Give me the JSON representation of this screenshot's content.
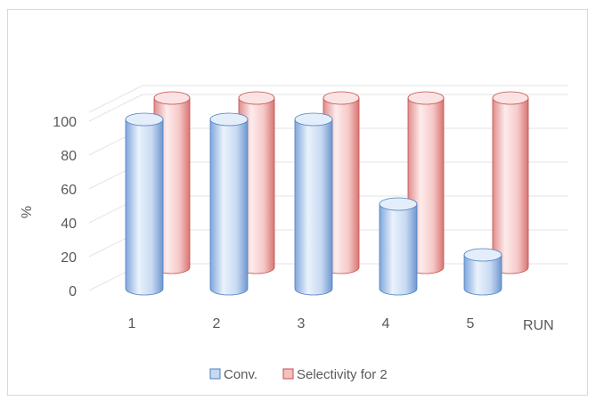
{
  "chart_data": {
    "type": "bar",
    "style": "3d-cylinder",
    "categories": [
      "1",
      "2",
      "3",
      "4",
      "5"
    ],
    "series": [
      {
        "name": "Conv.",
        "values": [
          100,
          100,
          100,
          50,
          20
        ],
        "color": "#c5d9f1",
        "edge": "#4f81bd"
      },
      {
        "name": "Selectivity for 2",
        "values": [
          100,
          100,
          100,
          100,
          100
        ],
        "color": "#f4c0c0",
        "edge": "#c0504d"
      }
    ],
    "xlabel": "RUN",
    "ylabel": "%",
    "ylim": [
      0,
      100
    ],
    "yticks": [
      "0",
      "20",
      "40",
      "60",
      "80",
      "100"
    ],
    "grid": true,
    "legend_position": "bottom"
  }
}
